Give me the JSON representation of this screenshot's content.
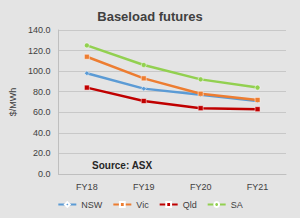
{
  "chart_data": {
    "type": "line",
    "title": "Baseload futures",
    "y_label": "$/MWh",
    "annotation": "Source: ASX",
    "categories": [
      "FY18",
      "FY19",
      "FY20",
      "FY21"
    ],
    "series": [
      {
        "name": "NSW",
        "color": "#5b9bd5",
        "marker": "diamond",
        "values": [
          98,
          83,
          77,
          71
        ]
      },
      {
        "name": "Vic",
        "color": "#ed7d31",
        "marker": "square",
        "values": [
          114,
          93,
          78,
          72
        ]
      },
      {
        "name": "Qld",
        "color": "#c00000",
        "marker": "square",
        "values": [
          84,
          71,
          64,
          63
        ]
      },
      {
        "name": "SA",
        "color": "#92d050",
        "marker": "circle",
        "values": [
          125,
          106,
          92,
          84
        ]
      }
    ],
    "ylim": [
      0,
      140
    ],
    "yticks": [
      {
        "value": 0,
        "label": "0.0"
      },
      {
        "value": 20,
        "label": "20.0"
      },
      {
        "value": 40,
        "label": "40.0"
      },
      {
        "value": 60,
        "label": "60.0"
      },
      {
        "value": 80,
        "label": "80.0"
      },
      {
        "value": 100,
        "label": "100.0"
      },
      {
        "value": 120,
        "label": "120.0"
      },
      {
        "value": 140,
        "label": "140.0"
      }
    ],
    "grid": true,
    "legend": "bottom"
  }
}
